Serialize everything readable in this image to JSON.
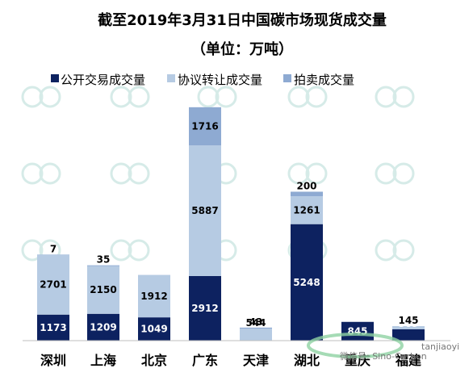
{
  "colors": {
    "public": "#0d2260",
    "negotiated": "#b6cbe3",
    "auction": "#8eaad2"
  },
  "chart_data": {
    "type": "bar",
    "stacked": true,
    "title": "截至2019年3月31日中国碳市场现货成交量",
    "subtitle": "（单位：万吨）",
    "legend_position": "top",
    "categories": [
      "深圳",
      "上海",
      "北京",
      "广东",
      "天津",
      "湖北",
      "重庆",
      "福建"
    ],
    "series": [
      {
        "name": "公开交易成交量",
        "values": [
          1173,
          1209,
          1049,
          2912,
          0,
          5248,
          845,
          509
        ]
      },
      {
        "name": "协议转让成交量",
        "values": [
          2701,
          2150,
          1912,
          5887,
          544,
          1261,
          0,
          145
        ]
      },
      {
        "name": "拍卖成交量",
        "values": [
          7,
          35,
          0,
          1716,
          43,
          200,
          0,
          0
        ]
      }
    ],
    "ylim": [
      0,
      10500
    ]
  },
  "footer": {
    "wechat_label": "微信号: Sino-Carbon",
    "site_text": "tanjiaoyi"
  }
}
